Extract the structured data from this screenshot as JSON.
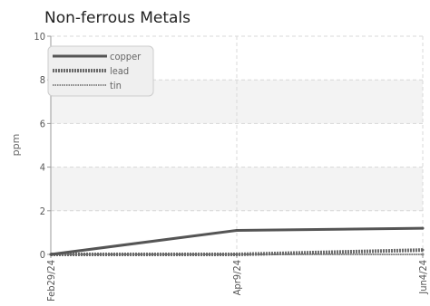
{
  "chart_data": {
    "type": "line",
    "title": "Non-ferrous Metals",
    "ylabel": "ppm",
    "xlabel": "",
    "categories": [
      "Feb29/24",
      "Apr9/24",
      "Jun4/24"
    ],
    "ylim": [
      0,
      10
    ],
    "yticks": [
      0,
      2,
      4,
      6,
      8,
      10
    ],
    "grid": true,
    "legend_position": "top-left",
    "series": [
      {
        "name": "copper",
        "values": [
          0,
          1.1,
          1.2
        ],
        "color": "#555555",
        "style": "solid"
      },
      {
        "name": "lead",
        "values": [
          0,
          0,
          0.2
        ],
        "color": "#6a6a6a",
        "style": "dotted-thick"
      },
      {
        "name": "tin",
        "values": [
          0,
          0,
          0
        ],
        "color": "#888888",
        "style": "dotted-thin"
      }
    ]
  }
}
